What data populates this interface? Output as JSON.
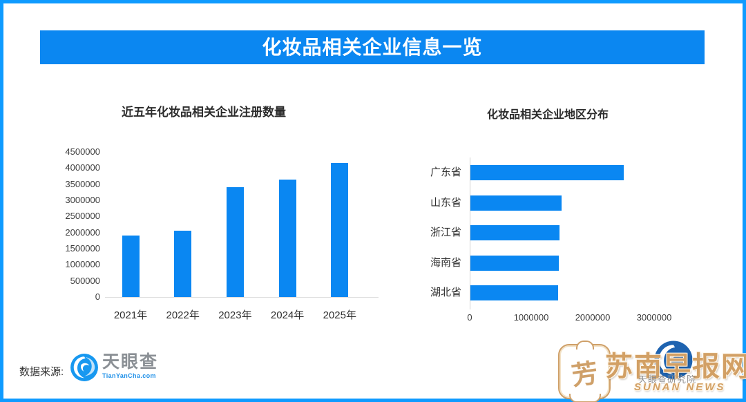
{
  "page": {
    "frame_color": "#0f9bff",
    "background": "#ffffff"
  },
  "header": {
    "title": "化妆品相关企业信息一览",
    "bg_color": "#0b87f1",
    "text_color": "#ffffff"
  },
  "chart_data": [
    {
      "type": "bar",
      "orientation": "vertical",
      "title": "近五年化妆品相关企业注册数量",
      "categories": [
        "2021年",
        "2022年",
        "2023年",
        "2024年",
        "2025年"
      ],
      "values": [
        1900000,
        2050000,
        3400000,
        3650000,
        4150000
      ],
      "xlabel": "",
      "ylabel": "",
      "ylim": [
        0,
        4500000
      ],
      "yticks": [
        "4500000",
        "4000000",
        "3500000",
        "3000000",
        "2500000",
        "2000000",
        "1500000",
        "1000000",
        "500000",
        "0"
      ],
      "bar_color": "#0a87f2",
      "grid": false,
      "legend": "none"
    },
    {
      "type": "bar",
      "orientation": "horizontal",
      "title": "化妆品相关企业地区分布",
      "categories": [
        "广东省",
        "山东省",
        "浙江省",
        "海南省",
        "湖北省"
      ],
      "values": [
        2490000,
        1480000,
        1450000,
        1440000,
        1430000
      ],
      "xlabel": "",
      "ylabel": "",
      "xlim": [
        0,
        3500000
      ],
      "xticks": [
        "0",
        "1000000",
        "2000000",
        "3000000"
      ],
      "bar_color": "#0a87f2",
      "grid": false,
      "legend": "none"
    }
  ],
  "footer": {
    "source_label": "数据来源:",
    "logo": {
      "name": "天眼查",
      "domain": "TianYanCha.com"
    }
  },
  "watermark": {
    "seal_glyph": "芳",
    "site_name": "苏南早报网",
    "site_name_en": "SUNAN NEWS",
    "sub_brand": "天眼查研究院",
    "gold_color": "#d2a065"
  }
}
